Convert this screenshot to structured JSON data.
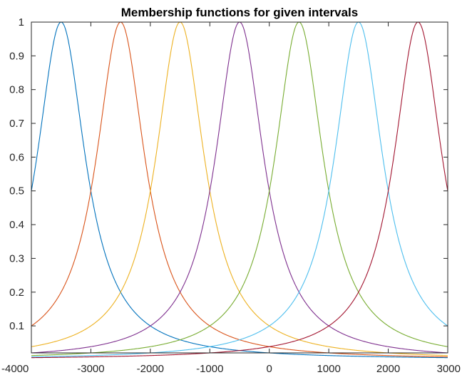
{
  "chart_data": {
    "type": "line",
    "title": "Membership functions for given intervals",
    "xlabel": "",
    "ylabel": "",
    "xlim": [
      -4000,
      3000
    ],
    "ylim": [
      0.02,
      1.0
    ],
    "grid": false,
    "legend": "none",
    "x_ticks": [
      -4000,
      -3000,
      -2000,
      -1000,
      0,
      1000,
      2000,
      3000
    ],
    "y_ticks": [
      0.1,
      0.2,
      0.3,
      0.4,
      0.5,
      0.6,
      0.7,
      0.8,
      0.9,
      1
    ],
    "function_shape": "generalized bell",
    "width_a": 500,
    "slope_b": 1,
    "series": [
      {
        "center": -3500,
        "color": "#0072BD"
      },
      {
        "center": -2500,
        "color": "#D95319"
      },
      {
        "center": -1500,
        "color": "#EDB120"
      },
      {
        "center": -500,
        "color": "#7E2F8E"
      },
      {
        "center": 500,
        "color": "#77AC30"
      },
      {
        "center": 1500,
        "color": "#4DBEEE"
      },
      {
        "center": 2500,
        "color": "#A2142F"
      }
    ]
  }
}
